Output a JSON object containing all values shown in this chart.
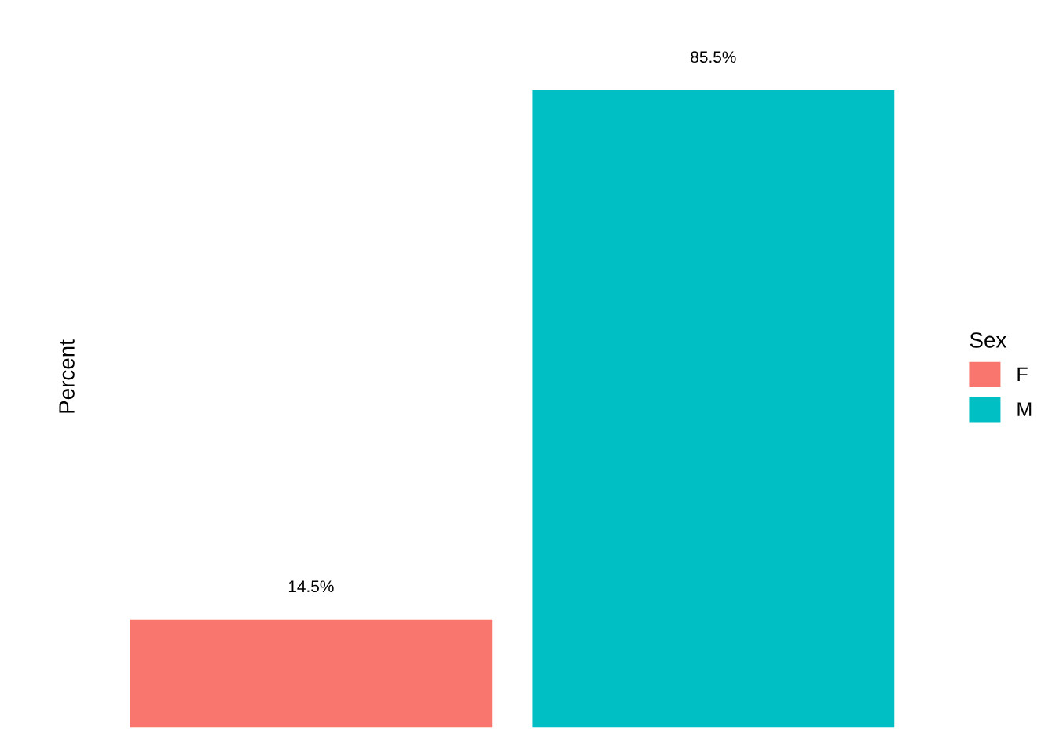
{
  "chart_data": {
    "type": "bar",
    "stacked": true,
    "ylabel": "Percent",
    "legend_title": "Sex",
    "legend": "right",
    "categories": [
      null,
      null
    ],
    "series": [
      {
        "name": "F",
        "color": "#f8766d",
        "values": [
          14.5,
          null
        ],
        "value_labels": [
          "14.5%",
          null
        ]
      },
      {
        "name": "M",
        "color": "#00bfc4",
        "values": [
          null,
          85.5
        ],
        "value_labels": [
          null,
          "85.5%"
        ]
      }
    ],
    "grid": false
  }
}
